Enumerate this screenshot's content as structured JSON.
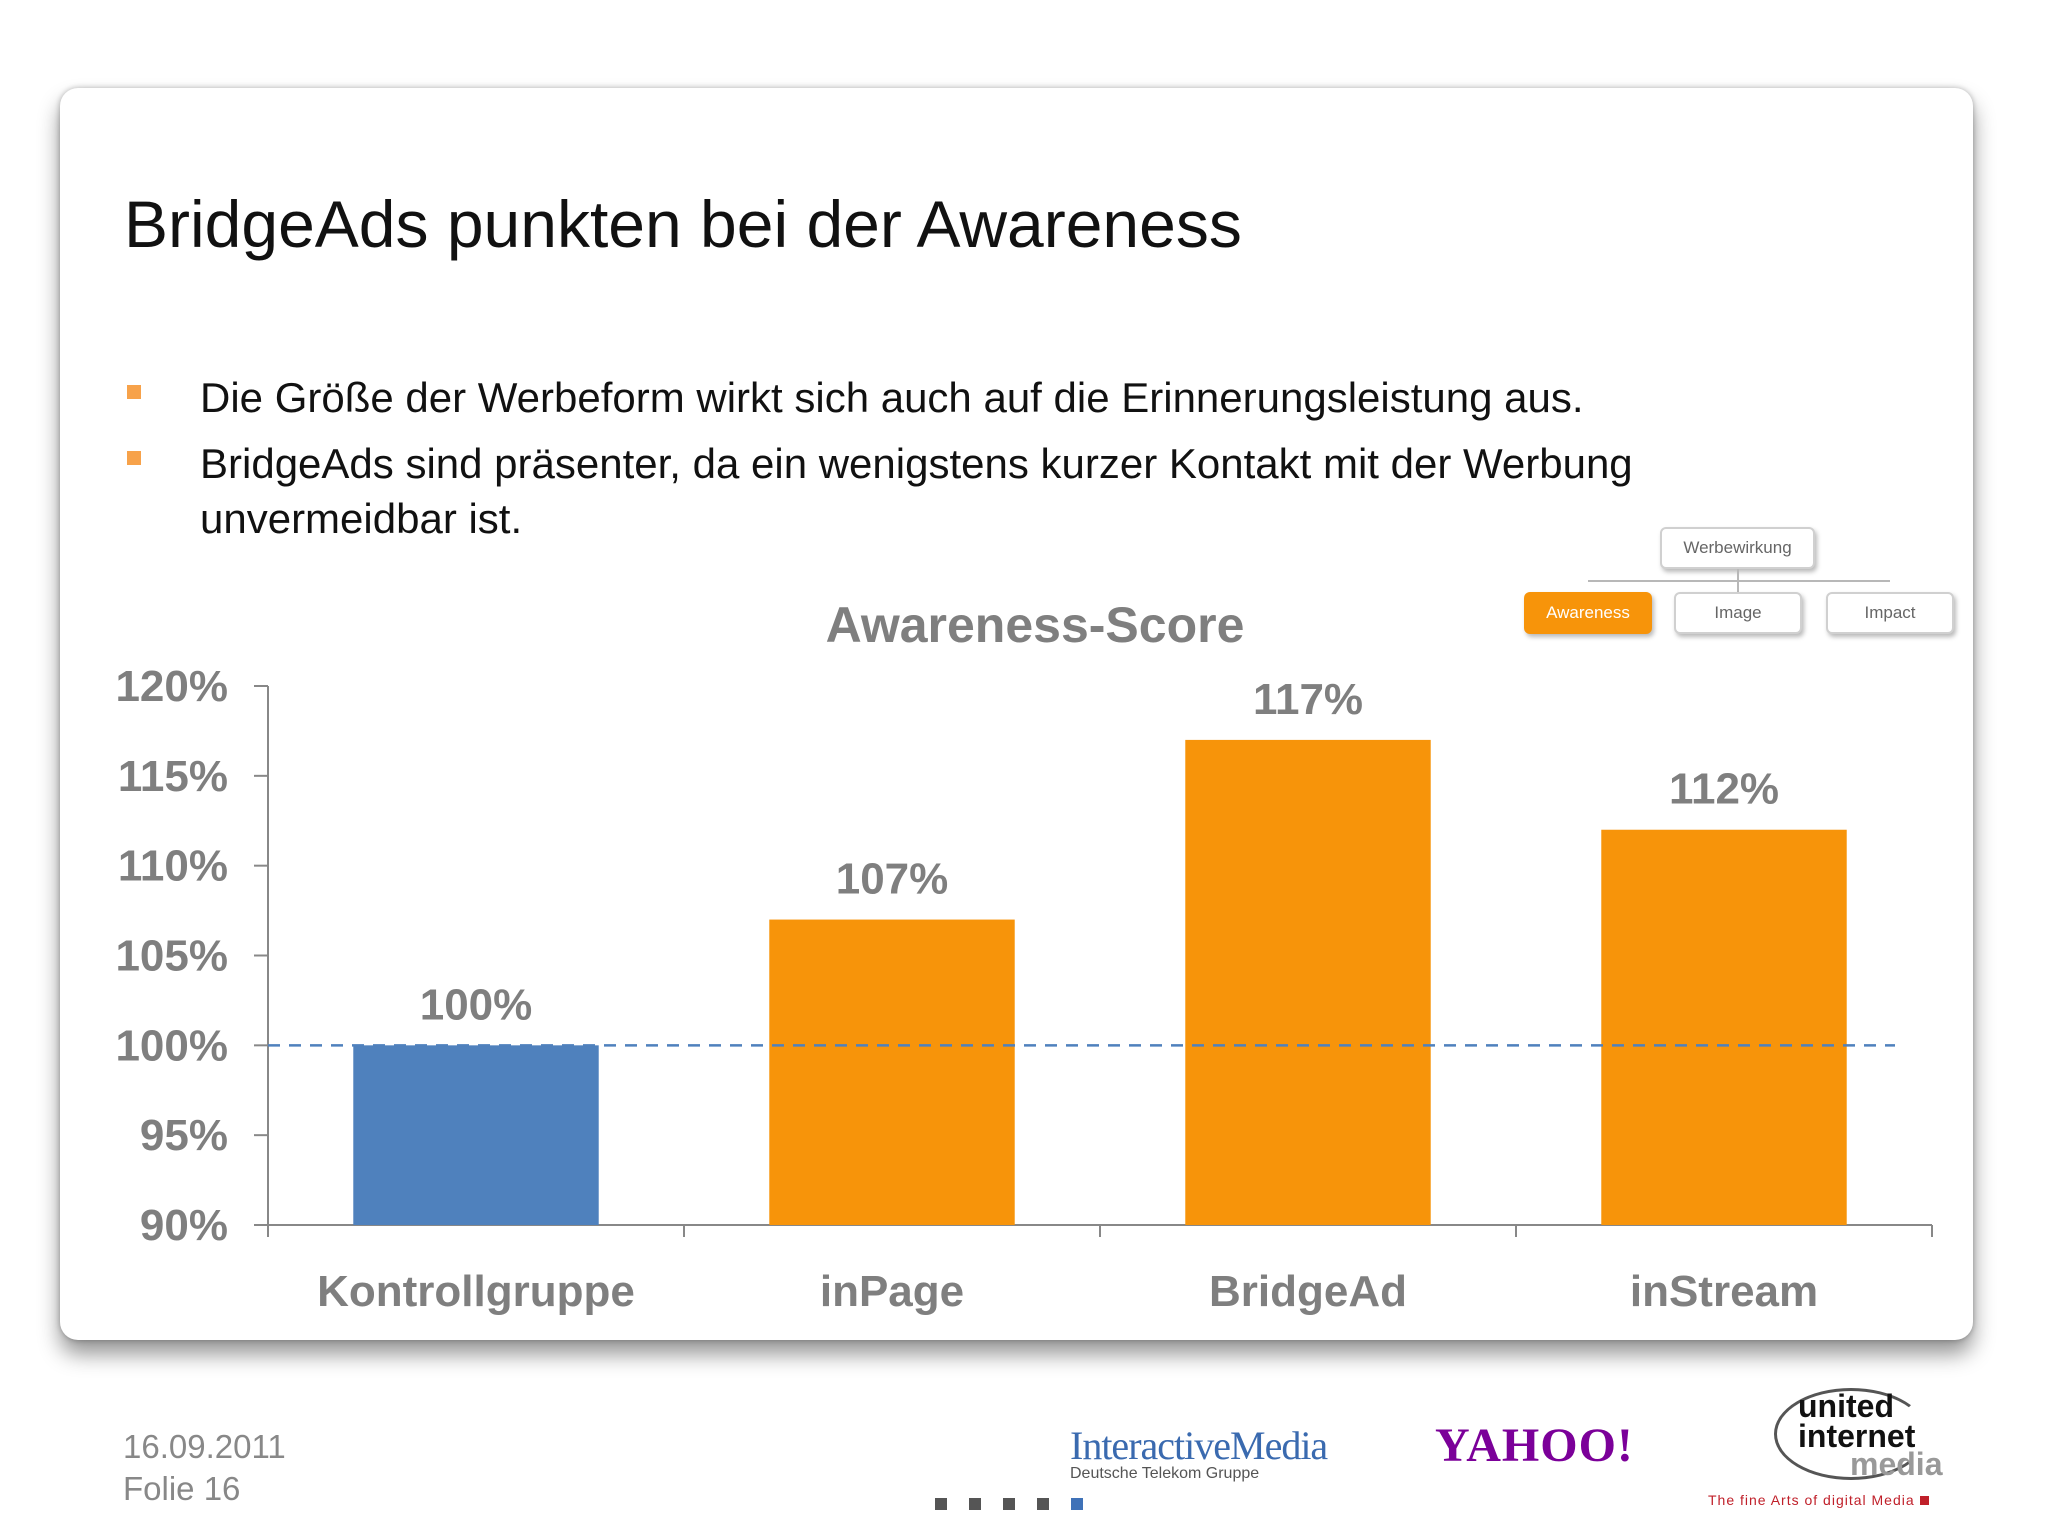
{
  "slide": {
    "title": "BridgeAds punkten bei der Awareness",
    "bullets": [
      "Die Größe der Werbeform wirkt sich auch auf die Erinnerungsleistung aus.",
      "BridgeAds sind präsenter, da ein wenigstens kurzer Kontakt mit der Werbung unvermeidbar ist."
    ],
    "colors": {
      "bullet": "#f7a24a",
      "accent": "#f7940a",
      "reference": "#4f81bd"
    }
  },
  "hierarchy": {
    "root": "Werbewirkung",
    "children": [
      "Awareness",
      "Image",
      "Impact"
    ],
    "active": "Awareness"
  },
  "chart_data": {
    "type": "bar",
    "title": "Awareness-Score",
    "categories": [
      "Kontrollgruppe",
      "inPage",
      "BridgeAd",
      "inStream"
    ],
    "values": [
      100,
      107,
      117,
      112
    ],
    "value_labels": [
      "100%",
      "107%",
      "117%",
      "112%"
    ],
    "bar_colors": [
      "#4f81bd",
      "#f7940a",
      "#f7940a",
      "#f7940a"
    ],
    "y_ticks": [
      90,
      95,
      100,
      105,
      110,
      115,
      120
    ],
    "y_tick_labels": [
      "90%",
      "95%",
      "100%",
      "105%",
      "110%",
      "115%",
      "120%"
    ],
    "ylim": [
      90,
      120
    ],
    "reference_line": {
      "value": 100,
      "style": "dashed",
      "color": "#4f81bd"
    },
    "grid": false,
    "legend": "none",
    "xlabel": "",
    "ylabel": ""
  },
  "footer": {
    "date": "16.09.2011",
    "slide_number": "Folie 16",
    "logos": {
      "interactive_media": {
        "name": "InteractiveMedia",
        "subtitle": "Deutsche Telekom Gruppe"
      },
      "yahoo": {
        "name": "YAHOO!"
      },
      "united_internet_media": {
        "line1": "united",
        "line2": "internet",
        "line3": "media",
        "tagline": "The fine Arts of digital Media"
      }
    },
    "page_dots": {
      "count": 5,
      "current": 5
    }
  }
}
